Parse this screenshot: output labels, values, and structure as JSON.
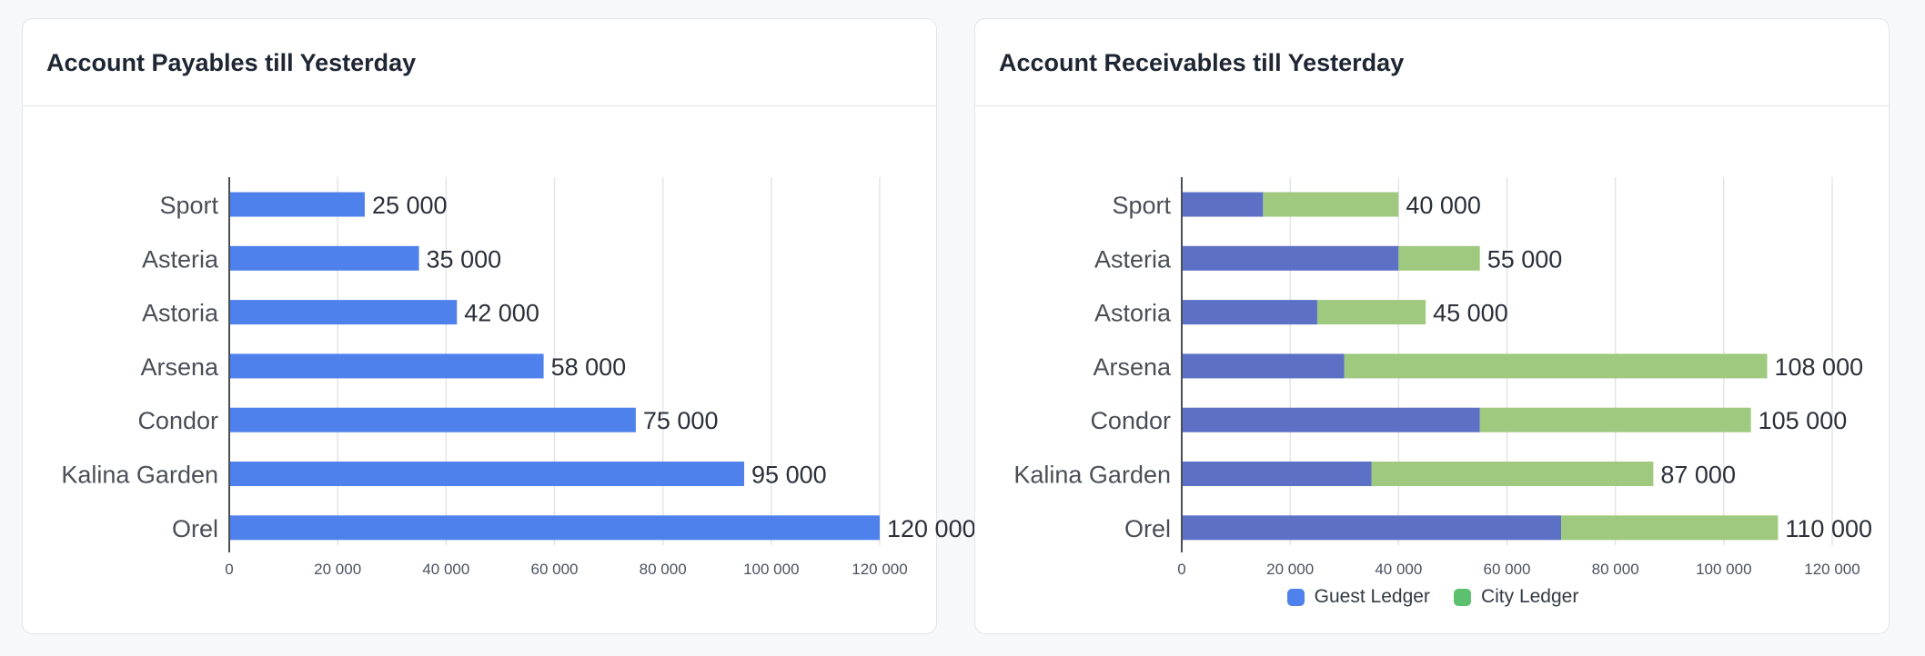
{
  "cards": {
    "payables": {
      "title": "Account Payables till Yesterday"
    },
    "receivables": {
      "title": "Account Receivables till Yesterday"
    }
  },
  "chart_data": [
    {
      "type": "bar",
      "orientation": "horizontal",
      "title": "Account Payables till Yesterday",
      "categories": [
        "Sport",
        "Asteria",
        "Astoria",
        "Arsena",
        "Condor",
        "Kalina Garden",
        "Orel"
      ],
      "series": [
        {
          "values": [
            25000,
            35000,
            42000,
            58000,
            75000,
            95000,
            120000
          ],
          "color": "#4f81ec"
        }
      ],
      "data_labels": [
        "25 000",
        "35 000",
        "42 000",
        "58 000",
        "75 000",
        "95 000",
        "120 000"
      ],
      "xlim": [
        0,
        120000
      ],
      "x_ticks": [
        "0",
        "20 000",
        "40 000",
        "60 000",
        "80 000",
        "100 000",
        "120 000"
      ],
      "grid": true,
      "legend": "none"
    },
    {
      "type": "bar",
      "orientation": "horizontal",
      "stacked": true,
      "title": "Account Receivables till Yesterday",
      "categories": [
        "Sport",
        "Asteria",
        "Astoria",
        "Arsena",
        "Condor",
        "Kalina Garden",
        "Orel"
      ],
      "series": [
        {
          "name": "Guest Ledger",
          "values": [
            15000,
            40000,
            25000,
            30000,
            55000,
            35000,
            70000
          ],
          "color": "#5c70c6"
        },
        {
          "name": "City Ledger",
          "values": [
            25000,
            15000,
            20000,
            78000,
            50000,
            52000,
            40000
          ],
          "color": "#9ec97f"
        }
      ],
      "data_labels": [
        "40 000",
        "55 000",
        "45 000",
        "108 000",
        "105 000",
        "87 000",
        "110 000"
      ],
      "xlim": [
        0,
        120000
      ],
      "x_ticks": [
        "0",
        "20 000",
        "40 000",
        "60 000",
        "80 000",
        "100 000",
        "120 000"
      ],
      "grid": true,
      "legend": "bottom",
      "legend_items": [
        {
          "label": "Guest Ledger",
          "color": "#4f81ec"
        },
        {
          "label": "City Ledger",
          "color": "#5cc06f"
        }
      ]
    }
  ]
}
